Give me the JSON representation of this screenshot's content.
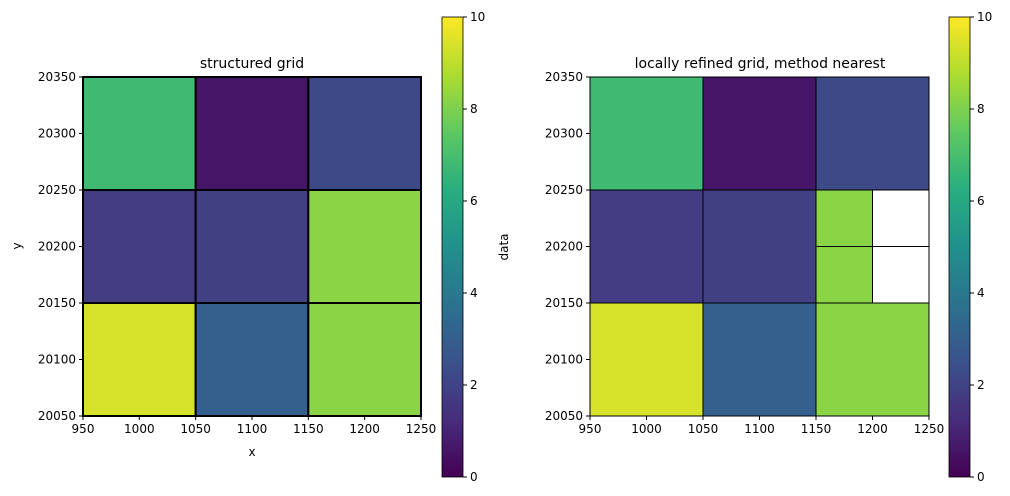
{
  "chart_data": [
    {
      "type": "heatmap",
      "title": "structured grid",
      "xlabel": "x",
      "ylabel": "y",
      "xlim": [
        950,
        1250
      ],
      "ylim": [
        20050,
        20350
      ],
      "xticks": [
        950,
        1000,
        1050,
        1100,
        1150,
        1200,
        1250
      ],
      "yticks": [
        20050,
        20100,
        20150,
        20200,
        20250,
        20300,
        20350
      ],
      "colormap": "viridis",
      "cells": [
        {
          "x0": 950,
          "x1": 1050,
          "y0": 20250,
          "y1": 20350,
          "value": 6.8
        },
        {
          "x0": 1050,
          "x1": 1150,
          "y0": 20250,
          "y1": 20350,
          "value": 0.6
        },
        {
          "x0": 1150,
          "x1": 1250,
          "y0": 20250,
          "y1": 20350,
          "value": 2.2
        },
        {
          "x0": 950,
          "x1": 1050,
          "y0": 20150,
          "y1": 20250,
          "value": 1.8
        },
        {
          "x0": 1050,
          "x1": 1150,
          "y0": 20150,
          "y1": 20250,
          "value": 1.9
        },
        {
          "x0": 1150,
          "x1": 1250,
          "y0": 20150,
          "y1": 20250,
          "value": 8.2
        },
        {
          "x0": 950,
          "x1": 1050,
          "y0": 20050,
          "y1": 20150,
          "value": 9.4
        },
        {
          "x0": 1050,
          "x1": 1150,
          "y0": 20050,
          "y1": 20150,
          "value": 3.0
        },
        {
          "x0": 1150,
          "x1": 1250,
          "y0": 20050,
          "y1": 20150,
          "value": 8.2
        }
      ],
      "colorbar": {
        "label": "data",
        "min": 0,
        "max": 10,
        "ticks": [
          0,
          2,
          4,
          6,
          8,
          10
        ]
      }
    },
    {
      "type": "heatmap",
      "title": "locally refined grid, method nearest",
      "xlabel": "",
      "ylabel": "",
      "xlim": [
        950,
        1250
      ],
      "ylim": [
        20050,
        20350
      ],
      "xticks": [
        950,
        1000,
        1050,
        1100,
        1150,
        1200,
        1250
      ],
      "yticks": [
        20050,
        20100,
        20150,
        20200,
        20250,
        20300,
        20350
      ],
      "colormap": "viridis",
      "cells": [
        {
          "x0": 950,
          "x1": 1050,
          "y0": 20250,
          "y1": 20350,
          "value": 6.8
        },
        {
          "x0": 1050,
          "x1": 1150,
          "y0": 20250,
          "y1": 20350,
          "value": 0.6
        },
        {
          "x0": 1150,
          "x1": 1250,
          "y0": 20250,
          "y1": 20350,
          "value": 2.2
        },
        {
          "x0": 950,
          "x1": 1050,
          "y0": 20150,
          "y1": 20250,
          "value": 1.8
        },
        {
          "x0": 1050,
          "x1": 1150,
          "y0": 20150,
          "y1": 20250,
          "value": 1.9
        },
        {
          "x0": 1150,
          "x1": 1200,
          "y0": 20200,
          "y1": 20250,
          "value": 8.2
        },
        {
          "x0": 1200,
          "x1": 1250,
          "y0": 20200,
          "y1": 20250,
          "value": null
        },
        {
          "x0": 1150,
          "x1": 1200,
          "y0": 20150,
          "y1": 20200,
          "value": 8.2
        },
        {
          "x0": 1200,
          "x1": 1250,
          "y0": 20150,
          "y1": 20200,
          "value": null
        },
        {
          "x0": 950,
          "x1": 1050,
          "y0": 20050,
          "y1": 20150,
          "value": 9.4
        },
        {
          "x0": 1050,
          "x1": 1150,
          "y0": 20050,
          "y1": 20150,
          "value": 3.0
        },
        {
          "x0": 1150,
          "x1": 1250,
          "y0": 20050,
          "y1": 20150,
          "value": 8.2
        }
      ],
      "colorbar": {
        "label": "",
        "min": 0,
        "max": 10,
        "ticks": [
          0,
          2,
          4,
          6,
          8,
          10
        ]
      }
    }
  ]
}
